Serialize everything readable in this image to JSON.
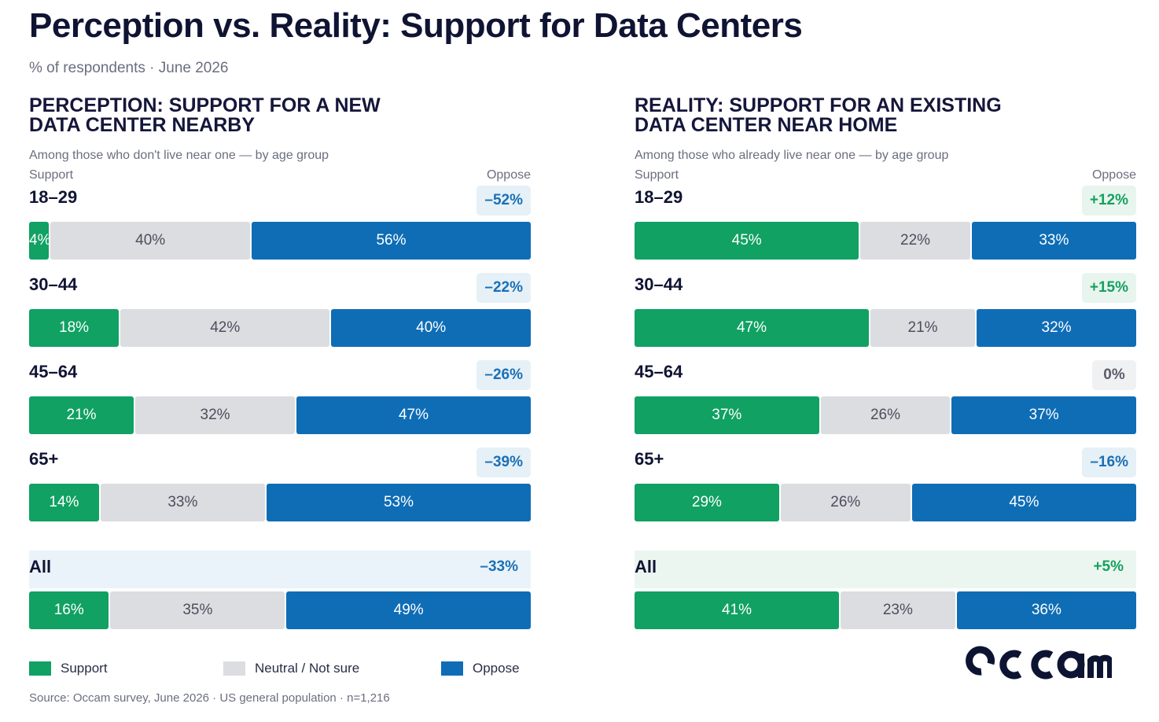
{
  "title": "Perception vs. Reality: Support for Data Centers",
  "subtitle": "% of respondents · June 2026",
  "colors": {
    "support": "#10a163",
    "neutral": "#dcdde1",
    "oppose": "#0f6db6",
    "perception_title": "#1377c2",
    "reality_title": "#13a05f"
  },
  "legend": [
    {
      "label": "Support",
      "color": "#10a163"
    },
    {
      "label": "Neutral / Not sure",
      "color": "#dcdde1"
    },
    {
      "label": "Oppose",
      "color": "#0f6db6"
    }
  ],
  "source": "Source: Occam survey, June 2026 · US general population · n=1,216",
  "logo": {
    "text": "occam"
  },
  "chart_data": [
    {
      "type": "bar",
      "stacked": true,
      "orientation": "horizontal",
      "title_lines": [
        "PERCEPTION: SUPPORT FOR A NEW",
        "DATA CENTER NEARBY"
      ],
      "subtitle": "Among those who don't live near one — by age group",
      "left_label": "Support",
      "right_label": "Oppose",
      "categories": [
        "18–29",
        "30–44",
        "45–64",
        "65+",
        "All"
      ],
      "series": [
        {
          "name": "Support",
          "values": [
            4,
            18,
            21,
            14,
            16
          ]
        },
        {
          "name": "Neutral / Not sure",
          "values": [
            40,
            42,
            32,
            33,
            35
          ]
        },
        {
          "name": "Oppose",
          "values": [
            56,
            40,
            47,
            53,
            49
          ]
        }
      ],
      "net": [
        "–52%",
        "–22%",
        "–26%",
        "–39%",
        "–33%"
      ],
      "net_sign": [
        "neg",
        "neg",
        "neg",
        "neg",
        "neg"
      ]
    },
    {
      "type": "bar",
      "stacked": true,
      "orientation": "horizontal",
      "title_lines": [
        "REALITY: SUPPORT FOR AN EXISTING",
        "DATA CENTER NEAR HOME"
      ],
      "subtitle": "Among those who already live near one — by age group",
      "left_label": "Support",
      "right_label": "Oppose",
      "categories": [
        "18–29",
        "30–44",
        "45–64",
        "65+",
        "All"
      ],
      "series": [
        {
          "name": "Support",
          "values": [
            45,
            47,
            37,
            29,
            41
          ]
        },
        {
          "name": "Neutral / Not sure",
          "values": [
            22,
            21,
            26,
            26,
            23
          ]
        },
        {
          "name": "Oppose",
          "values": [
            33,
            32,
            37,
            45,
            36
          ]
        }
      ],
      "net": [
        "+12%",
        "+15%",
        "0%",
        "–16%",
        "+5%"
      ],
      "net_sign": [
        "pos",
        "pos",
        "zero",
        "neg",
        "pos"
      ]
    }
  ]
}
